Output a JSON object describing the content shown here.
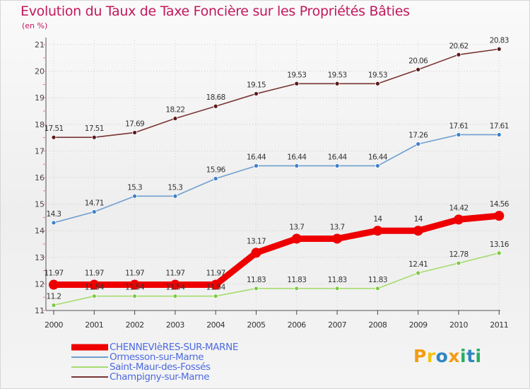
{
  "title": "Evolution du Taux de Taxe Foncière sur les Propriétés Bâties",
  "unit_label": "(en %)",
  "logo": {
    "text": "Proxiti",
    "letters": [
      "P",
      "r",
      "o",
      "x",
      "i",
      "t",
      "i"
    ],
    "colors": [
      "#f39c12",
      "#f1c40f",
      "#2e86c1",
      "#f39c12",
      "#27ae60",
      "#2e86c1",
      "#27ae60"
    ]
  },
  "chart_data": {
    "type": "line",
    "title": "Evolution du Taux de Taxe Foncière sur les Propriétés Bâties",
    "ylabel": "(en %)",
    "x": [
      "2000",
      "2001",
      "2002",
      "2003",
      "2004",
      "2005",
      "2006",
      "2007",
      "2008",
      "2009",
      "2010",
      "2011"
    ],
    "ylim": [
      11,
      21
    ],
    "yticks": [
      11,
      12,
      13,
      14,
      15,
      16,
      17,
      18,
      19,
      20,
      21
    ],
    "grid": true,
    "legend_position": "bottom-left",
    "series": [
      {
        "name": "CHENNEVIèRES-SUR-MARNE",
        "color": "#ee0000",
        "marker_fill": "#ee0000",
        "values": [
          11.97,
          11.97,
          11.97,
          11.97,
          11.97,
          13.17,
          13.7,
          13.7,
          14,
          14,
          14.42,
          14.56
        ],
        "labels": [
          "11.97",
          "11.97",
          "11.97",
          "11.97",
          "11.97",
          "13.17",
          "13.7",
          "13.7",
          "14",
          "14",
          "14.42",
          "14.56"
        ],
        "bold": true
      },
      {
        "name": "Ormesson-sur-Marne",
        "color": "#6f9fd0",
        "marker_fill": "#3d7fc8",
        "values": [
          14.3,
          14.71,
          15.3,
          15.3,
          15.96,
          16.44,
          16.44,
          16.44,
          16.44,
          17.26,
          17.61,
          17.61
        ],
        "labels": [
          "14.3",
          "14.71",
          "15.3",
          "15.3",
          "15.96",
          "16.44",
          "16.44",
          "16.44",
          "16.44",
          "17.26",
          "17.61",
          "17.61"
        ]
      },
      {
        "name": "Saint-Maur-des-Fossés",
        "color": "#a6dc70",
        "marker_fill": "#7ec842",
        "values": [
          11.2,
          11.54,
          11.54,
          11.54,
          11.54,
          11.83,
          11.83,
          11.83,
          11.83,
          12.41,
          12.78,
          13.16
        ],
        "labels": [
          "11.2",
          "11.54",
          "11.54",
          "11.54",
          "11.54",
          "11.83",
          "11.83",
          "11.83",
          "11.83",
          "12.41",
          "12.78",
          "13.16"
        ]
      },
      {
        "name": "Champigny-sur-Marne",
        "color": "#7a3434",
        "marker_fill": "#5a1a1a",
        "values": [
          17.51,
          17.51,
          17.69,
          18.22,
          18.68,
          19.15,
          19.53,
          19.53,
          19.53,
          20.06,
          20.62,
          20.83
        ],
        "labels": [
          "17.51",
          "17.51",
          "17.69",
          "18.22",
          "18.68",
          "19.15",
          "19.53",
          "19.53",
          "19.53",
          "20.06",
          "20.62",
          "20.83"
        ]
      }
    ]
  }
}
